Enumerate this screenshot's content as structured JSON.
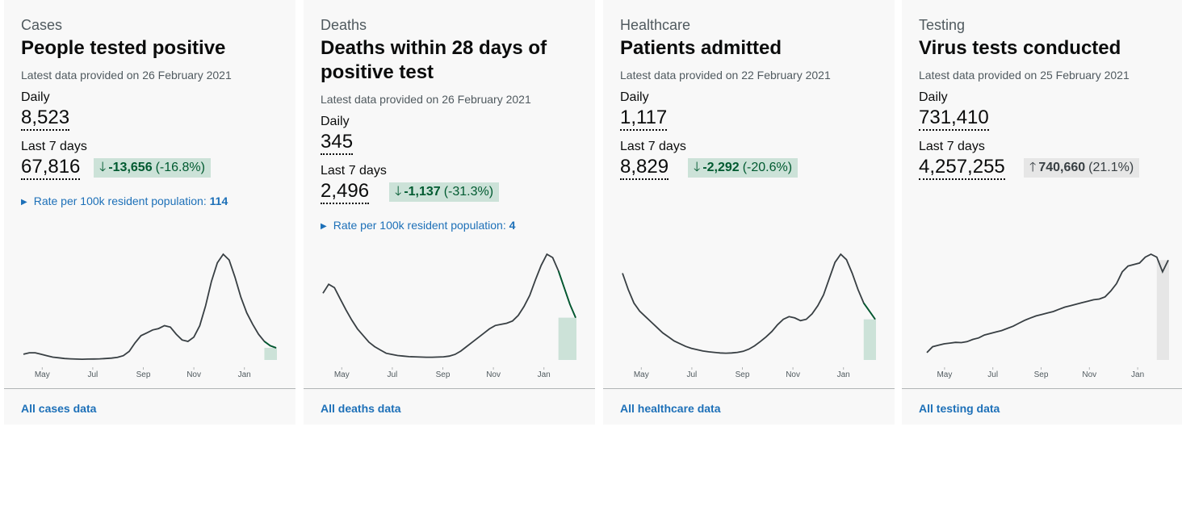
{
  "colors": {
    "line": "#383f43",
    "down_highlight": "#cce2d8",
    "down_text": "#005a30",
    "up_highlight": "#e6e6e6",
    "link": "#1d70b8"
  },
  "cards": [
    {
      "caption": "Cases",
      "heading": "People tested positive",
      "updated": "Latest data provided on 26 February 2021",
      "daily_label": "Daily",
      "daily_value": "8,523",
      "week_label": "Last 7 days",
      "week_value": "67,816",
      "change_arrow": "arrow-down-icon",
      "change_value": "-13,656",
      "change_pct": "(-16.8%)",
      "rate_label": "Rate per 100k resident population:",
      "rate_value": "114",
      "link": "All cases data",
      "chart_data": {
        "type": "line",
        "x_ticks": [
          "May",
          "Jul",
          "Sep",
          "Nov",
          "Jan"
        ],
        "values": [
          4,
          5,
          5,
          4,
          3,
          2,
          1.5,
          1,
          0.8,
          0.6,
          0.5,
          0.6,
          0.7,
          0.8,
          1,
          1.3,
          1.8,
          3,
          6,
          12,
          17,
          19,
          21,
          22,
          24,
          23,
          18,
          14,
          13,
          16,
          24,
          38,
          55,
          68,
          74,
          70,
          58,
          44,
          33,
          25,
          18,
          13,
          10,
          8.5
        ],
        "last_window": 2,
        "highlight": "down"
      }
    },
    {
      "caption": "Deaths",
      "heading": "Deaths within 28 days of positive test",
      "updated": "Latest data provided on 26 February 2021",
      "daily_label": "Daily",
      "daily_value": "345",
      "week_label": "Last 7 days",
      "week_value": "2,496",
      "change_arrow": "arrow-down-icon",
      "change_value": "-1,137",
      "change_pct": "(-31.3%)",
      "rate_label": "Rate per 100k resident population:",
      "rate_value": "4",
      "link": "All deaths data",
      "chart_data": {
        "type": "line",
        "x_ticks": [
          "May",
          "Jul",
          "Sep",
          "Nov",
          "Jan"
        ],
        "values": [
          60,
          68,
          65,
          55,
          45,
          36,
          28,
          22,
          16,
          12,
          9,
          6,
          5,
          4,
          3.5,
          3,
          2.8,
          2.6,
          2.5,
          2.5,
          2.6,
          2.8,
          3.5,
          5,
          8,
          12,
          16,
          20,
          24,
          28,
          31,
          32,
          33,
          35,
          40,
          48,
          58,
          72,
          85,
          95,
          92,
          80,
          65,
          50,
          38
        ],
        "last_window": 3,
        "highlight": "down"
      }
    },
    {
      "caption": "Healthcare",
      "heading": "Patients admitted",
      "updated": "Latest data provided on 22 February 2021",
      "daily_label": "Daily",
      "daily_value": "1,117",
      "week_label": "Last 7 days",
      "week_value": "8,829",
      "change_arrow": "arrow-down-icon",
      "change_value": "-2,292",
      "change_pct": "(-20.6%)",
      "rate_label": "",
      "rate_value": "",
      "link": "All healthcare data",
      "chart_data": {
        "type": "line",
        "x_ticks": [
          "May",
          "Jul",
          "Sep",
          "Nov",
          "Jan"
        ],
        "values": [
          3200,
          2600,
          2100,
          1800,
          1600,
          1400,
          1200,
          1000,
          850,
          700,
          600,
          500,
          430,
          380,
          330,
          300,
          280,
          260,
          250,
          260,
          280,
          320,
          400,
          520,
          680,
          850,
          1050,
          1300,
          1500,
          1600,
          1550,
          1450,
          1500,
          1700,
          2000,
          2400,
          3000,
          3600,
          3900,
          3700,
          3200,
          2600,
          2100,
          1800,
          1500
        ],
        "last_window": 2,
        "highlight": "down"
      }
    },
    {
      "caption": "Testing",
      "heading": "Virus tests conducted",
      "updated": "Latest data provided on 25 February 2021",
      "daily_label": "Daily",
      "daily_value": "731,410",
      "week_label": "Last 7 days",
      "week_value": "4,257,255",
      "change_arrow": "arrow-up-icon",
      "change_value": "740,660",
      "change_pct": "(21.1%)",
      "rate_label": "",
      "rate_value": "",
      "link": "All testing data",
      "chart_data": {
        "type": "line",
        "x_ticks": [
          "May",
          "Jul",
          "Sep",
          "Nov",
          "Jan"
        ],
        "values": [
          50,
          90,
          100,
          110,
          115,
          120,
          118,
          125,
          140,
          150,
          170,
          180,
          190,
          200,
          215,
          230,
          250,
          270,
          285,
          300,
          310,
          320,
          330,
          345,
          360,
          370,
          380,
          390,
          400,
          410,
          415,
          430,
          470,
          520,
          600,
          640,
          650,
          660,
          700,
          720,
          700,
          600,
          680
        ],
        "last_window": 2,
        "highlight": "up"
      }
    }
  ]
}
